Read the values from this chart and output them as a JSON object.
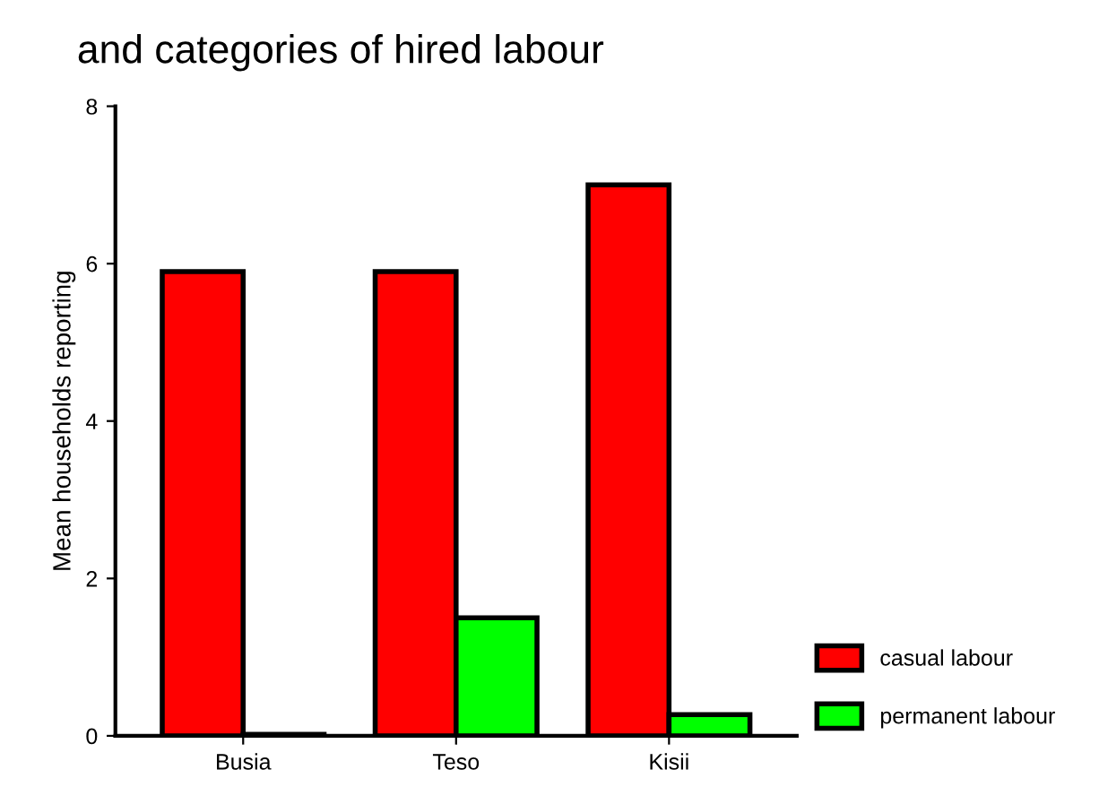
{
  "chart_data": {
    "type": "bar",
    "title": "and categories of hired labour",
    "ylabel": "Mean households reporting",
    "categories": [
      "Busia",
      "Teso",
      "Kisii"
    ],
    "series": [
      {
        "name": "casual labour",
        "color": "#ff0000",
        "values": [
          5.9,
          5.9,
          7.0
        ]
      },
      {
        "name": "permanent labour",
        "color": "#00ff00",
        "values": [
          0.02,
          1.5,
          0.27
        ]
      }
    ],
    "ylim": [
      0,
      8
    ],
    "yticks": [
      0,
      2,
      4,
      6,
      8
    ],
    "grid": false,
    "legend": "bottom right"
  }
}
